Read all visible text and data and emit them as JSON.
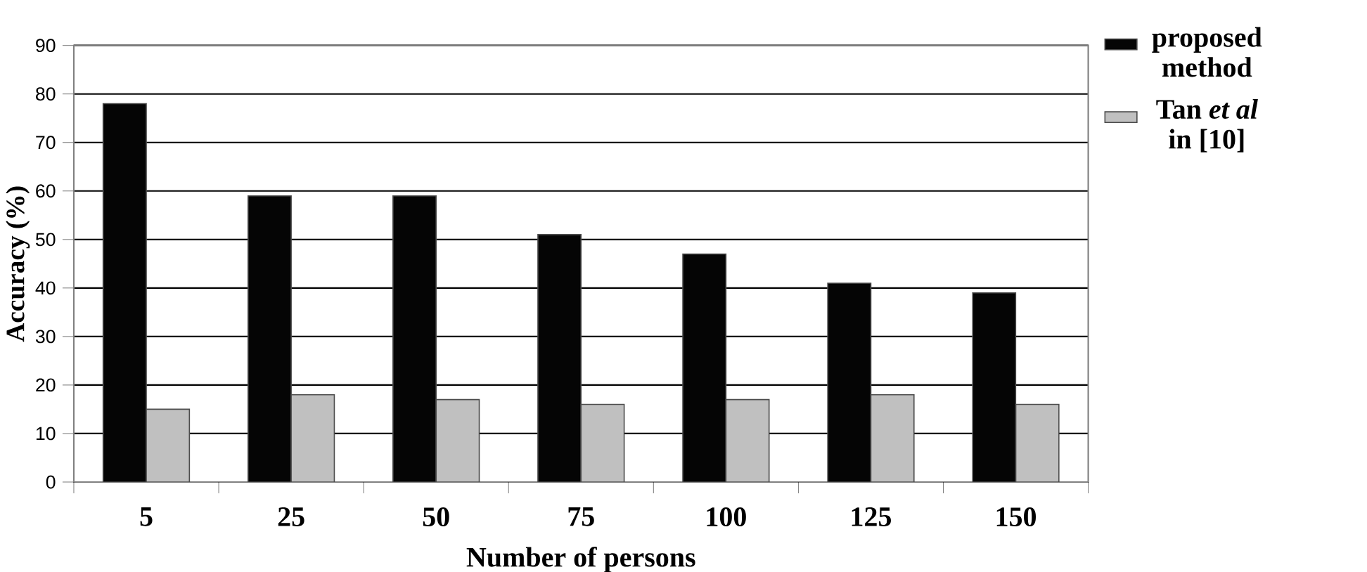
{
  "chart_data": {
    "type": "bar",
    "xlabel": "Number of persons",
    "ylabel": "Accuracy (%)",
    "categories": [
      "5",
      "25",
      "50",
      "75",
      "100",
      "125",
      "150"
    ],
    "series": [
      {
        "name": "proposed method",
        "color": "#050505",
        "values": [
          78,
          59,
          59,
          51,
          47,
          41,
          39
        ]
      },
      {
        "name": "Tan *et al* in [10]",
        "color": "#c0c0c0",
        "values": [
          15,
          18,
          17,
          16,
          17,
          18,
          16
        ]
      }
    ],
    "ylim": [
      0,
      90
    ],
    "yticks": [
      0,
      10,
      20,
      30,
      40,
      50,
      60,
      70,
      80,
      90
    ],
    "grid": "y",
    "legend": "right"
  }
}
